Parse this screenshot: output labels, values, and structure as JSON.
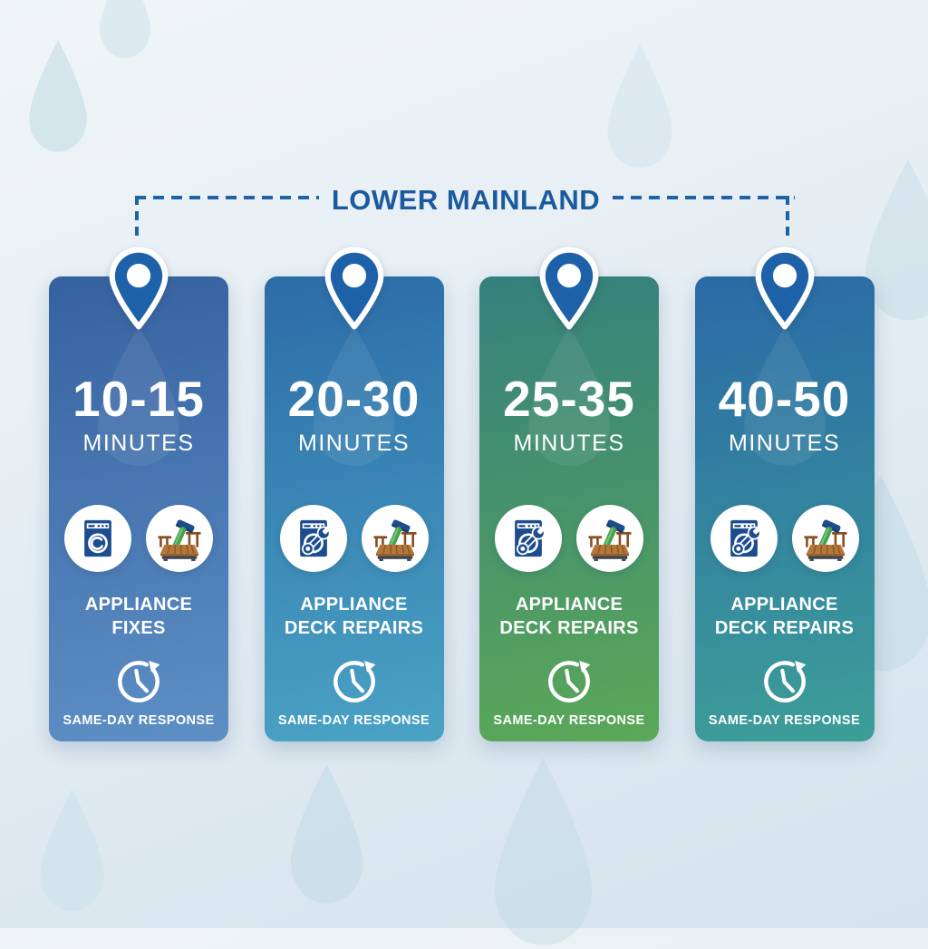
{
  "header": {
    "title": "LOWER MAINLAND"
  },
  "colors": {
    "title_text": "#1a5a9e",
    "dashed_line": "#1f63a5",
    "pin_fill": "#1d62a8",
    "card_text": "#ffffff",
    "washer_navy": "#1d4d8f",
    "deck_brown": "#b5763a",
    "hammer_green": "#43a04c"
  },
  "icons": {
    "pin": "map-pin-icon",
    "card_1_appliance": "washing-machine-icon",
    "card_other_appliance": "washing-machine-wrench-icon",
    "deck": "deck-hammer-icon",
    "clock": "same-day-clock-icon",
    "background": "water-drop-shape"
  },
  "cards": [
    {
      "time_range": "10-15",
      "time_unit": "MINUTES",
      "service_line1": "APPLIANCE",
      "service_line2": "FIXES",
      "response": "SAME-DAY RESPONSE",
      "gradient_top": "#36629f",
      "gradient_bottom": "#5d8fc5",
      "wrench": false
    },
    {
      "time_range": "20-30",
      "time_unit": "MINUTES",
      "service_line1": "APPLIANCE",
      "service_line2": "DECK REPAIRS",
      "response": "SAME-DAY RESPONSE",
      "gradient_top": "#2c6ca8",
      "gradient_bottom": "#4aa3c4",
      "wrench": true
    },
    {
      "time_range": "25-35",
      "time_unit": "MINUTES",
      "service_line1": "APPLIANCE",
      "service_line2": "DECK REPAIRS",
      "response": "SAME-DAY RESPONSE",
      "gradient_top": "#35807d",
      "gradient_bottom": "#5ba858",
      "wrench": true
    },
    {
      "time_range": "40-50",
      "time_unit": "MINUTES",
      "service_line1": "APPLIANCE",
      "service_line2": "DECK REPAIRS",
      "response": "SAME-DAY RESPONSE",
      "gradient_top": "#2a6aa6",
      "gradient_bottom": "#3d9e98",
      "wrench": true
    }
  ]
}
